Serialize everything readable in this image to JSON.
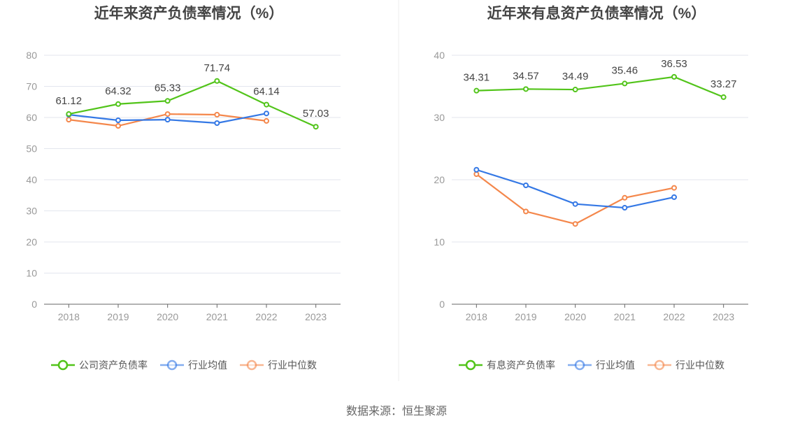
{
  "chart_data": [
    {
      "type": "line",
      "title": "近年来资产负债率情况（%）",
      "categories": [
        "2018",
        "2019",
        "2020",
        "2021",
        "2022",
        "2023"
      ],
      "ylim": [
        0,
        80
      ],
      "yticks": [
        0,
        10,
        20,
        30,
        40,
        50,
        60,
        70,
        80
      ],
      "grid": true,
      "legend": "bottom",
      "series": [
        {
          "name": "公司资产负债率",
          "color": "#52c41a",
          "values": [
            61.12,
            64.32,
            65.33,
            71.74,
            64.14,
            57.03
          ],
          "labels": true
        },
        {
          "name": "行业均值",
          "color": "#3478e5",
          "values": [
            60.9,
            59.1,
            59.3,
            58.2,
            61.3,
            null
          ]
        },
        {
          "name": "行业中位数",
          "color": "#f4874b",
          "values": [
            59.3,
            57.3,
            61.1,
            60.9,
            58.9,
            null
          ]
        }
      ]
    },
    {
      "type": "line",
      "title": "近年来有息资产负债率情况（%）",
      "categories": [
        "2018",
        "2019",
        "2020",
        "2021",
        "2022",
        "2023"
      ],
      "ylim": [
        0,
        40
      ],
      "yticks": [
        0,
        10,
        20,
        30,
        40
      ],
      "grid": true,
      "legend": "bottom",
      "series": [
        {
          "name": "有息资产负债率",
          "color": "#52c41a",
          "values": [
            34.31,
            34.57,
            34.49,
            35.46,
            36.53,
            33.27
          ],
          "labels": true
        },
        {
          "name": "行业均值",
          "color": "#3478e5",
          "values": [
            21.6,
            19.1,
            16.1,
            15.5,
            17.2,
            null
          ]
        },
        {
          "name": "行业中位数",
          "color": "#f4874b",
          "values": [
            20.9,
            14.9,
            12.9,
            17.1,
            18.7,
            null
          ]
        }
      ]
    }
  ],
  "source": "数据来源：恒生聚源"
}
